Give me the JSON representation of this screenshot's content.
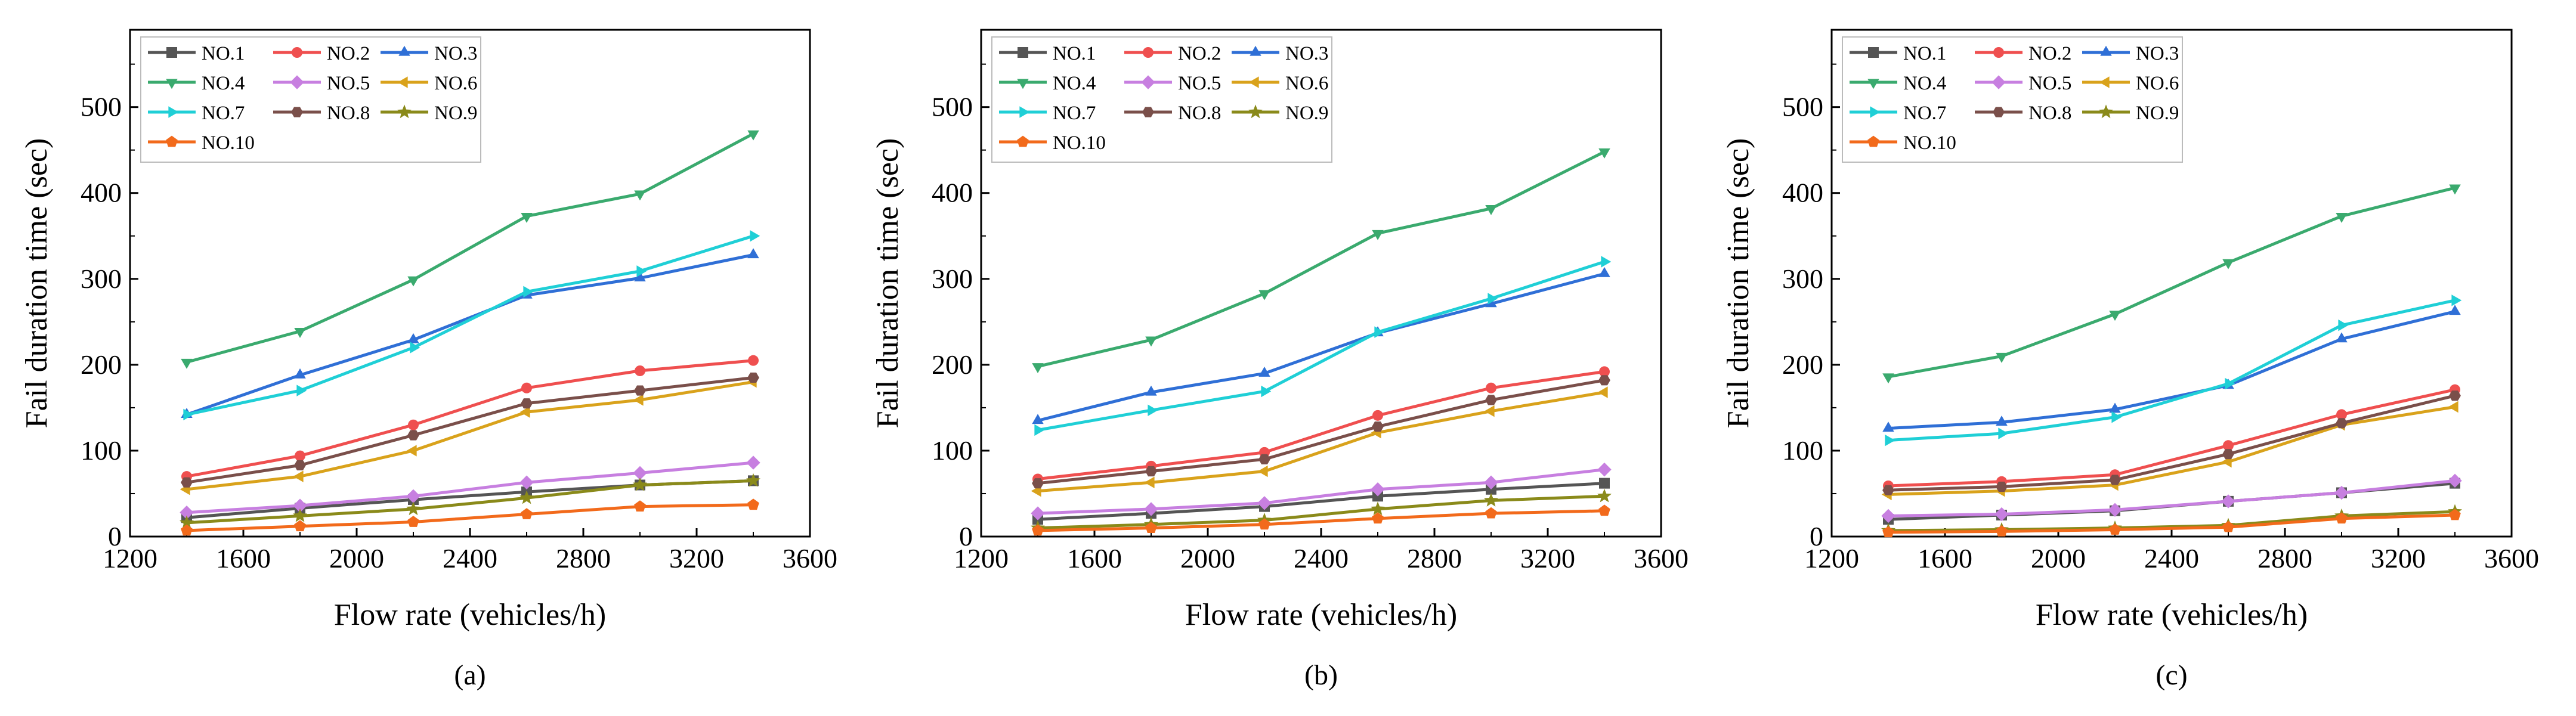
{
  "figure": {
    "panels": [
      "a",
      "b",
      "c"
    ]
  },
  "chart_data": [
    {
      "type": "line",
      "title": "(a)",
      "xlabel": "Flow rate (vehicles/h)",
      "ylabel": "Fail duration time (sec)",
      "xlim": [
        1200,
        3600
      ],
      "ylim": [
        0,
        590
      ],
      "xticks": [
        1200,
        1600,
        2000,
        2400,
        2800,
        3200,
        3600
      ],
      "yticks": [
        0,
        100,
        200,
        300,
        400,
        500
      ],
      "grid": false,
      "legend_position": "top-left",
      "x": [
        1400,
        1800,
        2200,
        2600,
        3000,
        3400
      ],
      "series": [
        {
          "name": "NO.1",
          "values": [
            22,
            33,
            43,
            52,
            60,
            65
          ],
          "color": "#555555",
          "marker": "square"
        },
        {
          "name": "NO.2",
          "values": [
            70,
            94,
            130,
            173,
            193,
            205
          ],
          "color": "#ef4f4f",
          "marker": "circle"
        },
        {
          "name": "NO.3",
          "values": [
            142,
            188,
            229,
            281,
            301,
            328
          ],
          "color": "#2f6fd6",
          "marker": "triangle-up"
        },
        {
          "name": "NO.4",
          "values": [
            203,
            239,
            299,
            373,
            399,
            469
          ],
          "color": "#3aaa6e",
          "marker": "triangle-down"
        },
        {
          "name": "NO.5",
          "values": [
            28,
            36,
            47,
            63,
            74,
            86
          ],
          "color": "#c77fe0",
          "marker": "diamond"
        },
        {
          "name": "NO.6",
          "values": [
            55,
            70,
            100,
            145,
            159,
            180
          ],
          "color": "#d9a21b",
          "marker": "triangle-left"
        },
        {
          "name": "NO.7",
          "values": [
            142,
            170,
            220,
            285,
            309,
            350
          ],
          "color": "#1fcfd6",
          "marker": "triangle-right"
        },
        {
          "name": "NO.8",
          "values": [
            63,
            83,
            118,
            155,
            170,
            185
          ],
          "color": "#7a4f4a",
          "marker": "hexagon"
        },
        {
          "name": "NO.9",
          "values": [
            16,
            24,
            32,
            45,
            60,
            65
          ],
          "color": "#8a8a1a",
          "marker": "star"
        },
        {
          "name": "NO.10",
          "values": [
            7,
            12,
            17,
            26,
            35,
            37
          ],
          "color": "#f26a1b",
          "marker": "pentagon"
        }
      ]
    },
    {
      "type": "line",
      "title": "(b)",
      "xlabel": "Flow rate (vehicles/h)",
      "ylabel": "Fail duration time (sec)",
      "xlim": [
        1200,
        3600
      ],
      "ylim": [
        0,
        590
      ],
      "xticks": [
        1200,
        1600,
        2000,
        2400,
        2800,
        3200,
        3600
      ],
      "yticks": [
        0,
        100,
        200,
        300,
        400,
        500
      ],
      "grid": false,
      "legend_position": "top-left",
      "x": [
        1400,
        1800,
        2200,
        2600,
        3000,
        3400
      ],
      "series": [
        {
          "name": "NO.1",
          "values": [
            20,
            27,
            35,
            47,
            55,
            62
          ],
          "color": "#555555",
          "marker": "square"
        },
        {
          "name": "NO.2",
          "values": [
            67,
            82,
            98,
            141,
            173,
            192
          ],
          "color": "#ef4f4f",
          "marker": "circle"
        },
        {
          "name": "NO.3",
          "values": [
            135,
            168,
            190,
            237,
            271,
            306
          ],
          "color": "#2f6fd6",
          "marker": "triangle-up"
        },
        {
          "name": "NO.4",
          "values": [
            198,
            229,
            283,
            353,
            382,
            448
          ],
          "color": "#3aaa6e",
          "marker": "triangle-down"
        },
        {
          "name": "NO.5",
          "values": [
            27,
            32,
            39,
            55,
            63,
            78
          ],
          "color": "#c77fe0",
          "marker": "diamond"
        },
        {
          "name": "NO.6",
          "values": [
            53,
            63,
            76,
            121,
            146,
            168
          ],
          "color": "#d9a21b",
          "marker": "triangle-left"
        },
        {
          "name": "NO.7",
          "values": [
            124,
            147,
            169,
            238,
            277,
            320
          ],
          "color": "#1fcfd6",
          "marker": "triangle-right"
        },
        {
          "name": "NO.8",
          "values": [
            62,
            76,
            90,
            128,
            159,
            182
          ],
          "color": "#7a4f4a",
          "marker": "hexagon"
        },
        {
          "name": "NO.9",
          "values": [
            10,
            14,
            19,
            32,
            42,
            47
          ],
          "color": "#8a8a1a",
          "marker": "star"
        },
        {
          "name": "NO.10",
          "values": [
            7,
            10,
            14,
            21,
            27,
            30
          ],
          "color": "#f26a1b",
          "marker": "pentagon"
        }
      ]
    },
    {
      "type": "line",
      "title": "(c)",
      "xlabel": "Flow rate (vehicles/h)",
      "ylabel": "Fail duration time (sec)",
      "xlim": [
        1200,
        3600
      ],
      "ylim": [
        0,
        590
      ],
      "xticks": [
        1200,
        1600,
        2000,
        2400,
        2800,
        3200,
        3600
      ],
      "yticks": [
        0,
        100,
        200,
        300,
        400,
        500
      ],
      "grid": false,
      "legend_position": "top-left",
      "x": [
        1400,
        1800,
        2200,
        2600,
        3000,
        3400
      ],
      "series": [
        {
          "name": "NO.1",
          "values": [
            20,
            25,
            30,
            41,
            51,
            62
          ],
          "color": "#555555",
          "marker": "square"
        },
        {
          "name": "NO.2",
          "values": [
            59,
            64,
            72,
            106,
            142,
            171
          ],
          "color": "#ef4f4f",
          "marker": "circle"
        },
        {
          "name": "NO.3",
          "values": [
            126,
            133,
            148,
            176,
            230,
            262
          ],
          "color": "#2f6fd6",
          "marker": "triangle-up"
        },
        {
          "name": "NO.4",
          "values": [
            186,
            210,
            259,
            319,
            373,
            406
          ],
          "color": "#3aaa6e",
          "marker": "triangle-down"
        },
        {
          "name": "NO.5",
          "values": [
            24,
            26,
            31,
            41,
            51,
            65
          ],
          "color": "#c77fe0",
          "marker": "diamond"
        },
        {
          "name": "NO.6",
          "values": [
            49,
            53,
            60,
            87,
            130,
            151
          ],
          "color": "#d9a21b",
          "marker": "triangle-left"
        },
        {
          "name": "NO.7",
          "values": [
            112,
            120,
            139,
            178,
            246,
            275
          ],
          "color": "#1fcfd6",
          "marker": "triangle-right"
        },
        {
          "name": "NO.8",
          "values": [
            54,
            58,
            66,
            96,
            132,
            164
          ],
          "color": "#7a4f4a",
          "marker": "hexagon"
        },
        {
          "name": "NO.9",
          "values": [
            7,
            8,
            10,
            13,
            24,
            29
          ],
          "color": "#8a8a1a",
          "marker": "star"
        },
        {
          "name": "NO.10",
          "values": [
            5,
            6,
            8,
            11,
            21,
            25
          ],
          "color": "#f26a1b",
          "marker": "pentagon"
        }
      ]
    }
  ]
}
